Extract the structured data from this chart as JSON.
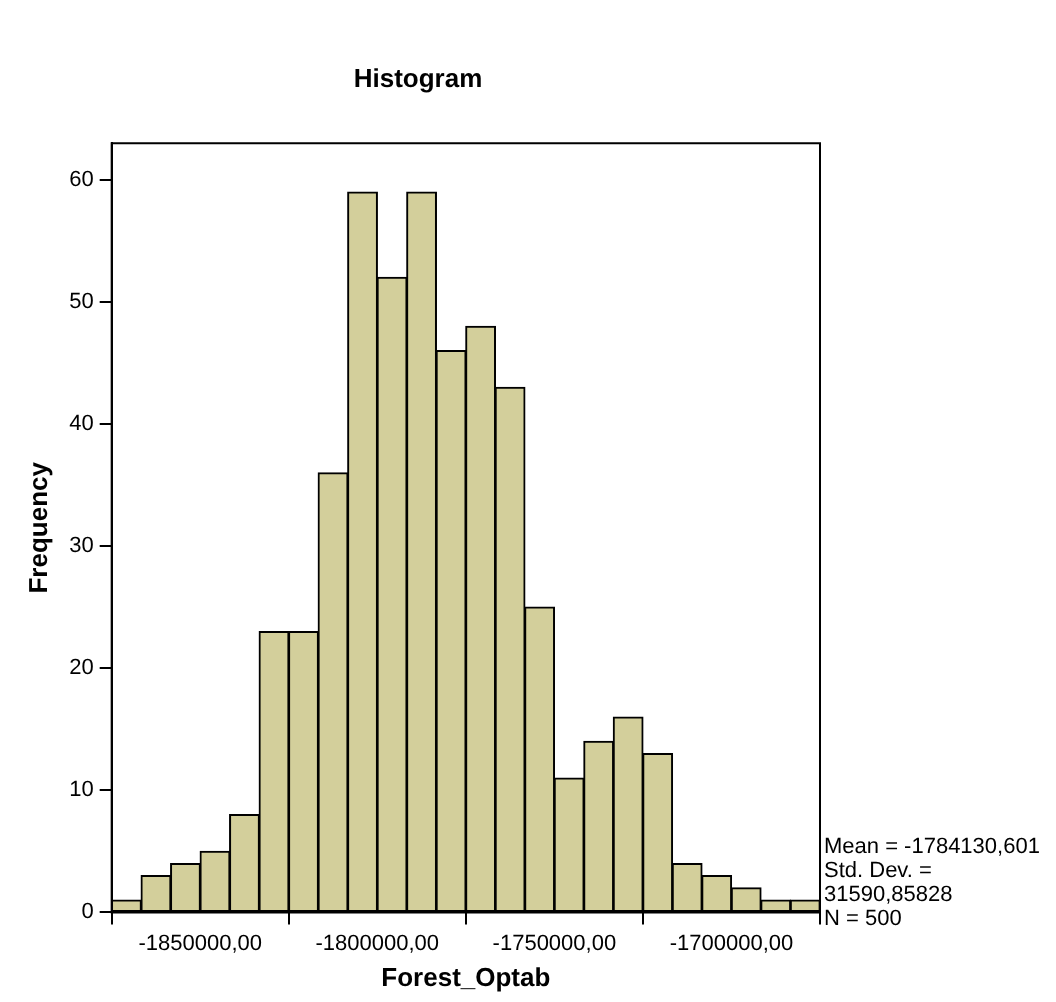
{
  "chart_data": {
    "type": "histogram",
    "title": "Histogram",
    "xlabel": "Forest_Optab",
    "ylabel": "Frequency",
    "bins": [
      -1875000,
      -1866667,
      -1858333,
      -1850000,
      -1841667,
      -1833333,
      -1825000,
      -1816667,
      -1808333,
      -1800000,
      -1791667,
      -1783333,
      -1775000,
      -1766667,
      -1758333,
      -1750000,
      -1741667,
      -1733333,
      -1725000,
      -1716667,
      -1708333,
      -1700000,
      -1691667,
      -1683333,
      -1675000
    ],
    "values": [
      1,
      3,
      4,
      5,
      8,
      23,
      23,
      36,
      59,
      52,
      59,
      46,
      48,
      43,
      25,
      11,
      14,
      16,
      13,
      4,
      3,
      2,
      1,
      1
    ],
    "color": "#d3cf9b",
    "xlim": [
      -1875000,
      -1675000
    ],
    "xticks": [
      {
        "value": -1850000,
        "label": "-1850000,00"
      },
      {
        "value": -1800000,
        "label": "-1800000,00"
      },
      {
        "value": -1750000,
        "label": "-1750000,00"
      },
      {
        "value": -1700000,
        "label": "-1700000,00"
      }
    ],
    "ylim": [
      0,
      63
    ],
    "yticks": [
      0,
      10,
      20,
      30,
      40,
      50,
      60
    ],
    "grid": false,
    "legend": false,
    "annotations": [
      "Mean = -1784130,601",
      "Std. Dev. =",
      "31590,85828",
      "N = 500"
    ]
  }
}
